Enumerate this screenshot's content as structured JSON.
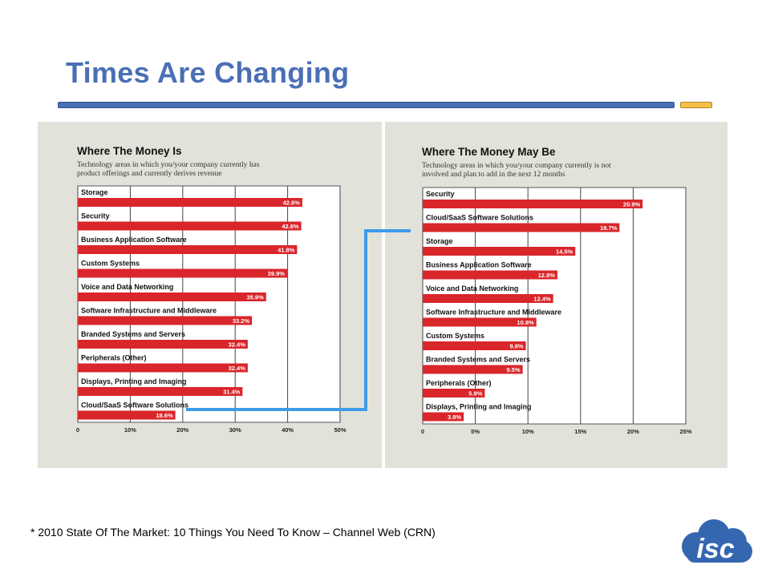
{
  "slide": {
    "title": "Times Are Changing",
    "footnote": "* 2010 State Of The Market: 10 Things You Need To Know – Channel Web (CRN)",
    "logo_text": "isc"
  },
  "colors": {
    "title": "#4a6fb5",
    "bar": "#d9262b",
    "connector": "#3d9be9",
    "panel_bg": "#e3e2da",
    "rule_blue": "#4a6fb5",
    "rule_gold": "#f5c04a",
    "logo": "#3566b0"
  },
  "chart_data": [
    {
      "type": "bar",
      "orientation": "horizontal",
      "title": "Where The Money Is",
      "subtitle_lines": [
        "Technology areas in which you/your company currently has",
        "product offerings and currently derives revenue"
      ],
      "categories": [
        "Storage",
        "Security",
        "Business Application Software",
        "Custom Systems",
        "Voice and Data Networking",
        "Software Infrastructure and Middleware",
        "Branded Systems and Servers",
        "Peripherals (Other)",
        "Displays, Printing and Imaging",
        "Cloud/SaaS Software Solutions"
      ],
      "values": [
        42.8,
        42.6,
        41.8,
        39.9,
        35.9,
        33.2,
        32.4,
        32.4,
        31.4,
        18.6
      ],
      "data_labels": [
        "42.8%",
        "42.6%",
        "41.8%",
        "39.9%",
        "35.9%",
        "33.2%",
        "32.4%",
        "32.4%",
        "31.4%",
        "18.6%"
      ],
      "xlim": [
        0,
        50
      ],
      "x_ticks": [
        0,
        10,
        20,
        30,
        40,
        50
      ],
      "x_tick_labels": [
        "0",
        "10%",
        "20%",
        "30%",
        "40%",
        "50%"
      ],
      "grid": true
    },
    {
      "type": "bar",
      "orientation": "horizontal",
      "title": "Where The Money May Be",
      "subtitle_lines": [
        "Technology areas in which you/your company currently is not",
        "involved and plan to add in the next 12 months"
      ],
      "categories": [
        "Security",
        "Cloud/SaaS Software Solutions",
        "Storage",
        "Business Application Software",
        "Voice and Data Networking",
        "Software Infrastructure and Middleware",
        "Custom Systems",
        "Branded Systems and Servers",
        "Peripherals (Other)",
        "Displays, Printing and Imaging"
      ],
      "values": [
        20.9,
        18.7,
        14.5,
        12.8,
        12.4,
        10.8,
        9.8,
        9.5,
        5.9,
        3.9
      ],
      "data_labels": [
        "20.9%",
        "18.7%",
        "14.5%",
        "12.8%",
        "12.4%",
        "10.8%",
        "9.8%",
        "9.5%",
        "5.9%",
        "3.9%"
      ],
      "xlim": [
        0,
        25
      ],
      "x_ticks": [
        0,
        5,
        10,
        15,
        20,
        25
      ],
      "x_tick_labels": [
        "0",
        "5%",
        "10%",
        "15%",
        "20%",
        "25%"
      ],
      "grid": true
    }
  ]
}
